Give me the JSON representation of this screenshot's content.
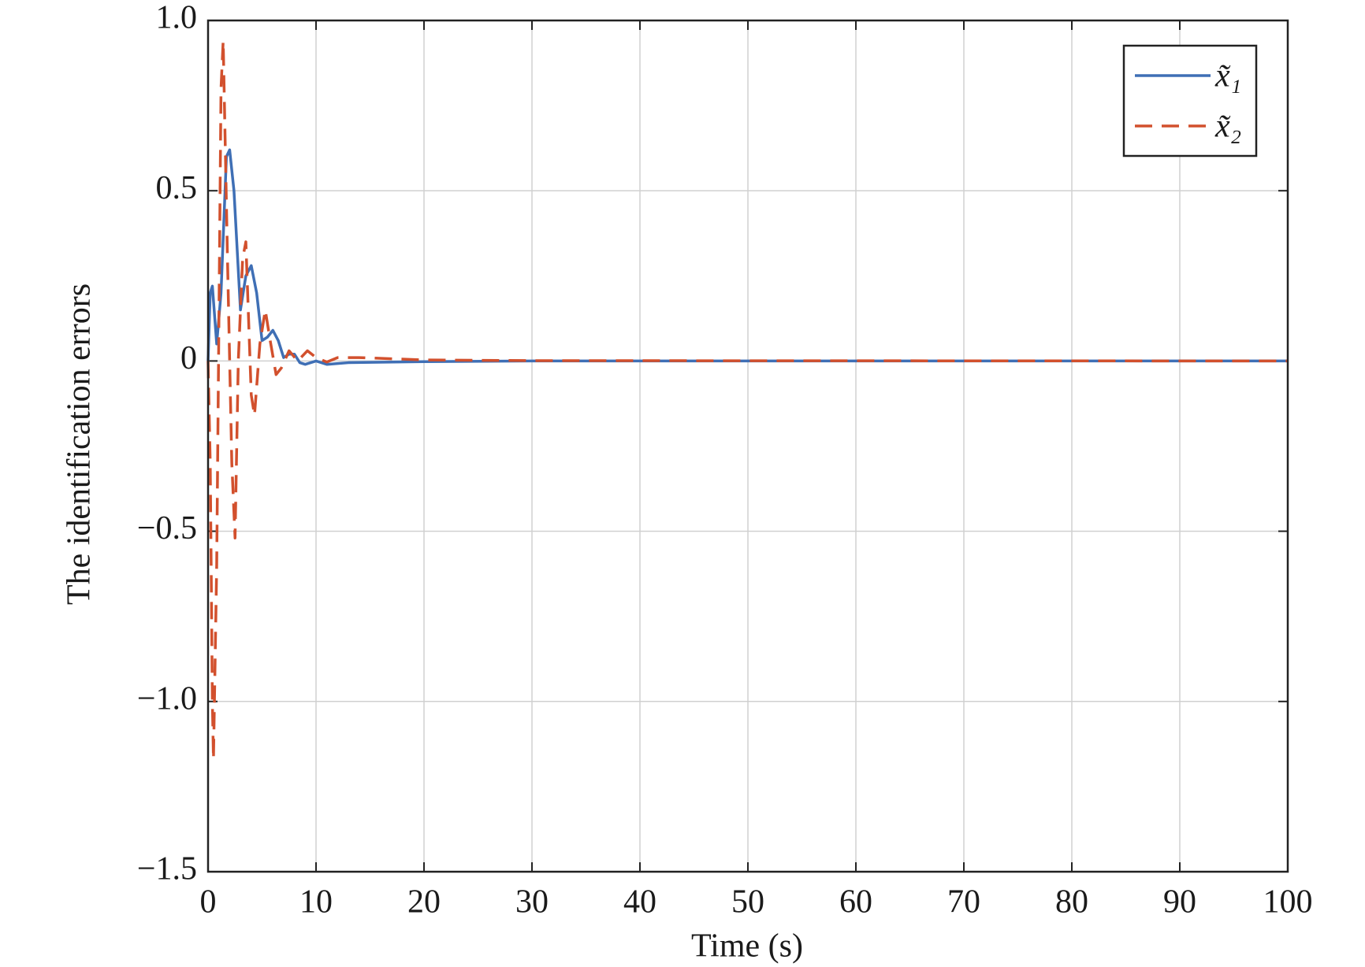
{
  "chart_data": {
    "type": "line",
    "xlabel": "Time (s)",
    "ylabel": "The identification errors",
    "xlim": [
      0,
      100
    ],
    "xticks": [
      0,
      10,
      20,
      30,
      40,
      50,
      60,
      70,
      80,
      90,
      100
    ],
    "ylim": [
      -1.5,
      1.0
    ],
    "yticks": [
      {
        "value": -1.5,
        "label": "−1.5"
      },
      {
        "value": -1.0,
        "label": "−1.0"
      },
      {
        "value": -0.5,
        "label": "−0.5"
      },
      0,
      0.5,
      {
        "value": 1.0,
        "label": "1.0"
      }
    ],
    "grid": true,
    "legend": "upper right",
    "series": [
      {
        "name": "x̃₁",
        "color": "#3f6fb5",
        "dash": false,
        "x": [
          0,
          0.2,
          0.4,
          0.8,
          1.2,
          1.7,
          2.0,
          2.4,
          3.0,
          3.5,
          4.0,
          4.5,
          5.0,
          5.5,
          6.0,
          6.5,
          7.0,
          7.5,
          8.0,
          8.5,
          9,
          10,
          11,
          13,
          20,
          30,
          100
        ],
        "values": [
          0,
          0.2,
          0.22,
          0.05,
          0.2,
          0.6,
          0.62,
          0.5,
          0.15,
          0.25,
          0.28,
          0.2,
          0.06,
          0.07,
          0.09,
          0.06,
          0.01,
          0.02,
          0.02,
          -0.005,
          -0.01,
          0,
          -0.01,
          -0.005,
          -0.002,
          0,
          0
        ]
      },
      {
        "name": "x̃₂",
        "color": "#d2502d",
        "dash": true,
        "x": [
          0,
          0.2,
          0.4,
          0.5,
          0.8,
          1.2,
          1.4,
          1.8,
          2.2,
          2.5,
          2.8,
          3.2,
          3.5,
          4.0,
          4.3,
          4.8,
          5.3,
          5.7,
          6.3,
          6.8,
          7.5,
          8.3,
          9.2,
          10,
          11,
          12,
          14,
          20,
          30,
          100
        ],
        "values": [
          0,
          -0.3,
          -1.0,
          -1.17,
          -0.6,
          0.8,
          0.94,
          0.3,
          -0.3,
          -0.52,
          0,
          0.3,
          0.35,
          -0.1,
          -0.16,
          0.05,
          0.15,
          0.07,
          -0.04,
          -0.02,
          0.03,
          0,
          0.03,
          0.01,
          -0.003,
          0.01,
          0.01,
          0.003,
          0.001,
          0
        ]
      }
    ]
  }
}
